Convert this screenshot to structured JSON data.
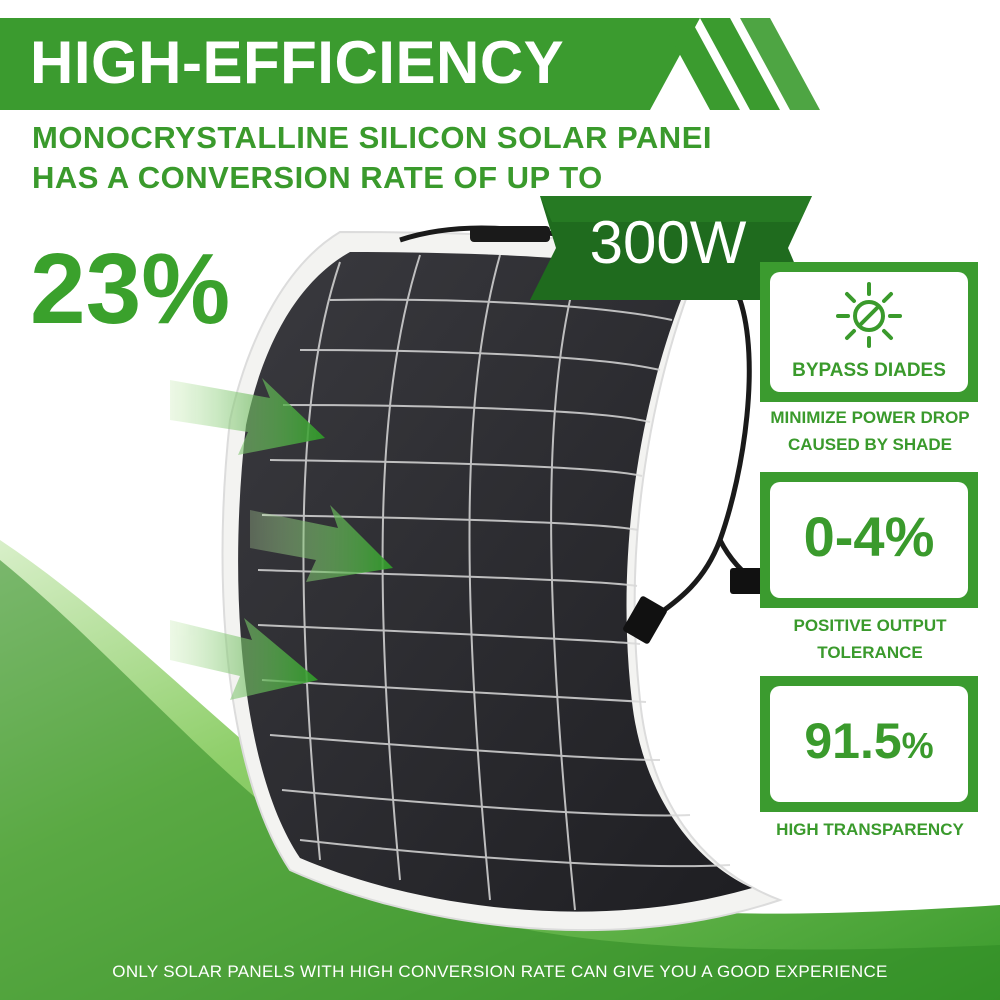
{
  "banner": {
    "title": "HIGH-EFFICIENCY"
  },
  "subtitle": {
    "line1": "MONOCRYSTALLINE SILICON SOLAR PANEI",
    "line2": "HAS A CONVERSION RATE OF UP TO"
  },
  "efficiency": "23%",
  "power_badge": "300W",
  "features": [
    {
      "icon": "sun-icon",
      "label": "BYPASS DIADES",
      "caption_line1": "MINIMIZE POWER DROP",
      "caption_line2": "CAUSED BY SHADE"
    },
    {
      "value": "0-4%",
      "caption_line1": "POSITIVE OUTPUT",
      "caption_line2": "TOLERANCE"
    },
    {
      "value": "91.5",
      "unit": "%",
      "caption_line1": "HIGH TRANSPARENCY"
    }
  ],
  "footer": "ONLY SOLAR PANELS WITH HIGH CONVERSION RATE CAN GIVE YOU A GOOD EXPERIENCE",
  "colors": {
    "brand_green": "#3b9b2f",
    "dark_green": "#1f6b1e",
    "panel_cell": "#2a2a2e"
  }
}
